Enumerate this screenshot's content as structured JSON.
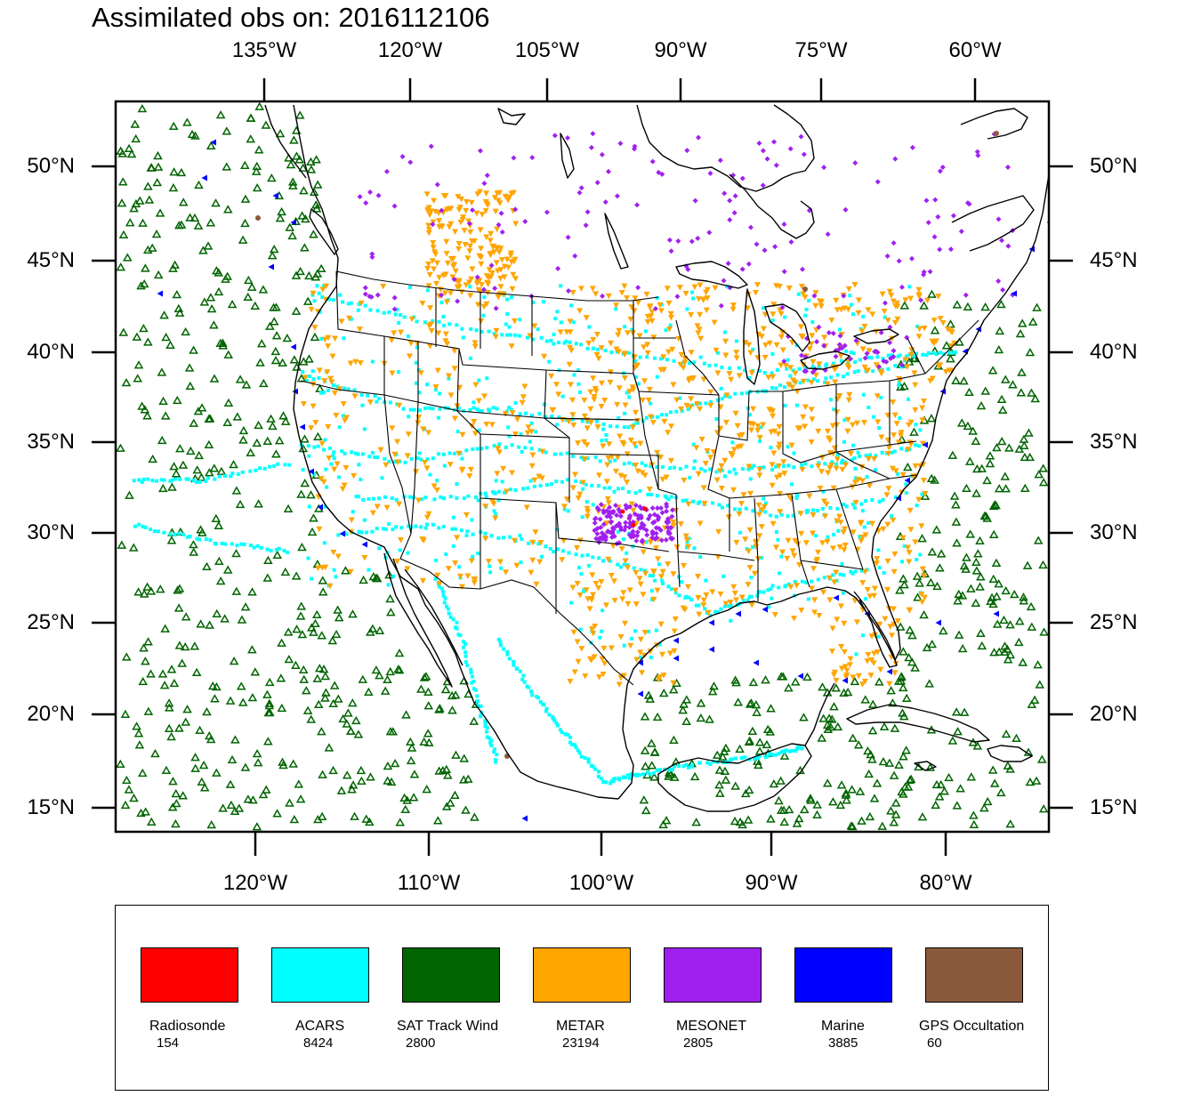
{
  "title": "Assimilated obs on: 2016112106",
  "top_lon_ticks": [
    "135°W",
    "120°W",
    "105°W",
    "90°W",
    "75°W",
    "60°W"
  ],
  "bottom_lon_ticks": [
    "120°W",
    "110°W",
    "100°W",
    "90°W",
    "80°W"
  ],
  "lat_ticks": [
    "50°N",
    "45°N",
    "40°N",
    "35°N",
    "30°N",
    "25°N",
    "20°N",
    "15°N"
  ],
  "colors": {
    "radiosonde": "#ff0000",
    "acars": "#00ffff",
    "sat_track_wind": "#006400",
    "metar": "#ffa500",
    "mesonet": "#a020f0",
    "marine": "#0000ff",
    "gps_occultation": "#8b5a3c"
  },
  "legend": [
    {
      "label": "Radiosonde",
      "count": "154",
      "color": "#ff0000"
    },
    {
      "label": "ACARS",
      "count": "8424",
      "color": "#00ffff"
    },
    {
      "label": "SAT Track Wind",
      "count": "2800",
      "color": "#006400"
    },
    {
      "label": "METAR",
      "count": "23194",
      "color": "#ffa500"
    },
    {
      "label": "MESONET",
      "count": "2805",
      "color": "#a020f0"
    },
    {
      "label": "Marine",
      "count": "3885",
      "color": "#0000ff"
    },
    {
      "label": "GPS Occultation",
      "count": "60",
      "color": "#8b5a3c"
    }
  ]
}
